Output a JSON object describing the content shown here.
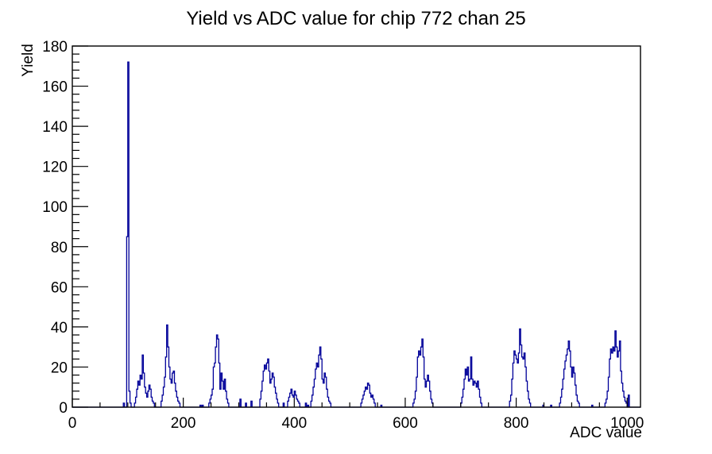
{
  "window": {
    "background": "#ffffff",
    "frame_color": "#000000",
    "text_color": "#000000"
  },
  "chart_data": {
    "type": "bar",
    "subtype": "step-histogram",
    "title": "Yield vs ADC value for chip 772 chan 25",
    "xlabel": "ADC value",
    "ylabel": "Yield",
    "line_color": "#000099",
    "grid": "off",
    "legend": "none",
    "bin_width": 2,
    "x_axis": {
      "min": 0,
      "max": 1024,
      "major_tick_step": 200,
      "minor_tick_step": 50,
      "label_values": [
        0,
        200,
        400,
        600,
        800,
        1000
      ],
      "tick_labels": [
        "0",
        "200",
        "400",
        "600",
        "800",
        "1000"
      ]
    },
    "y_axis": {
      "min": 0,
      "max": 180,
      "major_tick_step": 20,
      "minor_tick_step": 4,
      "label_values": [
        0,
        20,
        40,
        60,
        80,
        100,
        120,
        140,
        160,
        180
      ],
      "tick_labels": [
        "0",
        "20",
        "40",
        "60",
        "80",
        "100",
        "120",
        "140",
        "160",
        "180"
      ]
    },
    "bins": [
      [
        92,
        2
      ],
      [
        98,
        85
      ],
      [
        100,
        172
      ],
      [
        102,
        8
      ],
      [
        104,
        2
      ],
      [
        112,
        2
      ],
      [
        114,
        5
      ],
      [
        116,
        9
      ],
      [
        118,
        13
      ],
      [
        120,
        11
      ],
      [
        122,
        16
      ],
      [
        124,
        14
      ],
      [
        126,
        26
      ],
      [
        128,
        17
      ],
      [
        130,
        10
      ],
      [
        132,
        7
      ],
      [
        134,
        5
      ],
      [
        136,
        8
      ],
      [
        138,
        11
      ],
      [
        140,
        9
      ],
      [
        142,
        5
      ],
      [
        144,
        3
      ],
      [
        146,
        2
      ],
      [
        160,
        3
      ],
      [
        162,
        6
      ],
      [
        164,
        10
      ],
      [
        166,
        15
      ],
      [
        168,
        25
      ],
      [
        170,
        41
      ],
      [
        172,
        30
      ],
      [
        174,
        20
      ],
      [
        176,
        14
      ],
      [
        178,
        12
      ],
      [
        180,
        17
      ],
      [
        182,
        18
      ],
      [
        184,
        12
      ],
      [
        186,
        8
      ],
      [
        188,
        5
      ],
      [
        190,
        3
      ],
      [
        192,
        2
      ],
      [
        230,
        1
      ],
      [
        234,
        1
      ],
      [
        246,
        2
      ],
      [
        248,
        4
      ],
      [
        250,
        6
      ],
      [
        252,
        9
      ],
      [
        254,
        20
      ],
      [
        256,
        22
      ],
      [
        258,
        30
      ],
      [
        260,
        36
      ],
      [
        262,
        34
      ],
      [
        264,
        22
      ],
      [
        266,
        9
      ],
      [
        268,
        17
      ],
      [
        270,
        13
      ],
      [
        272,
        9
      ],
      [
        274,
        14
      ],
      [
        276,
        8
      ],
      [
        278,
        4
      ],
      [
        280,
        2
      ],
      [
        302,
        4
      ],
      [
        312,
        2
      ],
      [
        322,
        3
      ],
      [
        338,
        4
      ],
      [
        340,
        8
      ],
      [
        342,
        13
      ],
      [
        344,
        18
      ],
      [
        346,
        21
      ],
      [
        348,
        19
      ],
      [
        350,
        22
      ],
      [
        352,
        24
      ],
      [
        354,
        18
      ],
      [
        356,
        12
      ],
      [
        358,
        14
      ],
      [
        360,
        17
      ],
      [
        362,
        15
      ],
      [
        364,
        10
      ],
      [
        366,
        7
      ],
      [
        368,
        4
      ],
      [
        370,
        2
      ],
      [
        380,
        2
      ],
      [
        388,
        3
      ],
      [
        390,
        5
      ],
      [
        392,
        7
      ],
      [
        394,
        9
      ],
      [
        396,
        6
      ],
      [
        398,
        5
      ],
      [
        400,
        8
      ],
      [
        402,
        6
      ],
      [
        404,
        4
      ],
      [
        406,
        3
      ],
      [
        408,
        2
      ],
      [
        420,
        2
      ],
      [
        424,
        1
      ],
      [
        430,
        3
      ],
      [
        432,
        6
      ],
      [
        434,
        10
      ],
      [
        436,
        14
      ],
      [
        438,
        19
      ],
      [
        440,
        22
      ],
      [
        442,
        20
      ],
      [
        444,
        26
      ],
      [
        446,
        30
      ],
      [
        448,
        24
      ],
      [
        450,
        14
      ],
      [
        452,
        12
      ],
      [
        454,
        17
      ],
      [
        456,
        15
      ],
      [
        458,
        9
      ],
      [
        460,
        5
      ],
      [
        462,
        3
      ],
      [
        464,
        2
      ],
      [
        520,
        2
      ],
      [
        522,
        4
      ],
      [
        524,
        6
      ],
      [
        526,
        8
      ],
      [
        528,
        10
      ],
      [
        530,
        9
      ],
      [
        532,
        12
      ],
      [
        534,
        11
      ],
      [
        536,
        7
      ],
      [
        538,
        5
      ],
      [
        540,
        6
      ],
      [
        542,
        4
      ],
      [
        544,
        2
      ],
      [
        556,
        1
      ],
      [
        614,
        2
      ],
      [
        616,
        4
      ],
      [
        618,
        8
      ],
      [
        620,
        15
      ],
      [
        622,
        25
      ],
      [
        624,
        28
      ],
      [
        626,
        26
      ],
      [
        628,
        30
      ],
      [
        630,
        34
      ],
      [
        632,
        25
      ],
      [
        634,
        14
      ],
      [
        636,
        10
      ],
      [
        638,
        13
      ],
      [
        640,
        16
      ],
      [
        642,
        13
      ],
      [
        644,
        8
      ],
      [
        646,
        4
      ],
      [
        648,
        2
      ],
      [
        700,
        2
      ],
      [
        702,
        5
      ],
      [
        704,
        9
      ],
      [
        706,
        14
      ],
      [
        708,
        19
      ],
      [
        710,
        16
      ],
      [
        712,
        20
      ],
      [
        714,
        13
      ],
      [
        716,
        14
      ],
      [
        718,
        25
      ],
      [
        720,
        14
      ],
      [
        722,
        11
      ],
      [
        724,
        13
      ],
      [
        726,
        12
      ],
      [
        728,
        10
      ],
      [
        730,
        13
      ],
      [
        732,
        9
      ],
      [
        734,
        5
      ],
      [
        736,
        2
      ],
      [
        788,
        3
      ],
      [
        790,
        6
      ],
      [
        792,
        14
      ],
      [
        794,
        22
      ],
      [
        796,
        28
      ],
      [
        798,
        26
      ],
      [
        800,
        24
      ],
      [
        802,
        22
      ],
      [
        804,
        27
      ],
      [
        806,
        39
      ],
      [
        808,
        31
      ],
      [
        810,
        25
      ],
      [
        812,
        24
      ],
      [
        814,
        27
      ],
      [
        816,
        20
      ],
      [
        818,
        13
      ],
      [
        820,
        8
      ],
      [
        822,
        4
      ],
      [
        824,
        2
      ],
      [
        848,
        1
      ],
      [
        862,
        1
      ],
      [
        878,
        2
      ],
      [
        880,
        5
      ],
      [
        882,
        9
      ],
      [
        884,
        14
      ],
      [
        886,
        19
      ],
      [
        888,
        23
      ],
      [
        890,
        26
      ],
      [
        892,
        29
      ],
      [
        894,
        33
      ],
      [
        896,
        28
      ],
      [
        898,
        20
      ],
      [
        900,
        15
      ],
      [
        902,
        20
      ],
      [
        904,
        17
      ],
      [
        906,
        11
      ],
      [
        908,
        6
      ],
      [
        910,
        3
      ],
      [
        912,
        2
      ],
      [
        936,
        1
      ],
      [
        960,
        2
      ],
      [
        962,
        4
      ],
      [
        964,
        8
      ],
      [
        966,
        15
      ],
      [
        968,
        24
      ],
      [
        970,
        29
      ],
      [
        972,
        27
      ],
      [
        974,
        30
      ],
      [
        976,
        28
      ],
      [
        978,
        38
      ],
      [
        980,
        30
      ],
      [
        982,
        25
      ],
      [
        984,
        28
      ],
      [
        986,
        33
      ],
      [
        988,
        18
      ],
      [
        990,
        12
      ],
      [
        992,
        8
      ],
      [
        994,
        5
      ],
      [
        996,
        3
      ],
      [
        998,
        2
      ],
      [
        1002,
        6
      ]
    ]
  }
}
